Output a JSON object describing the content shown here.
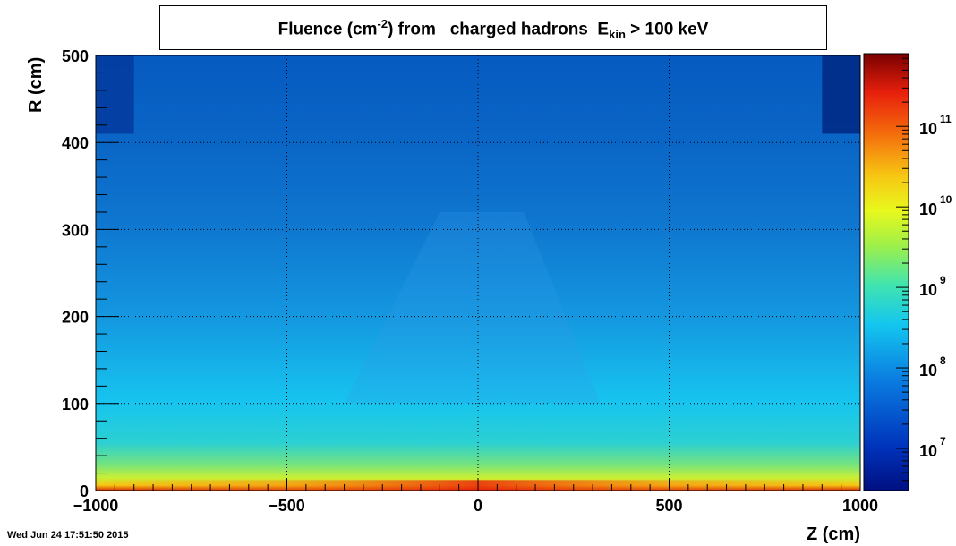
{
  "chart_data": {
    "type": "heatmap",
    "title_parts": {
      "pre": "Fluence (cm",
      "exp": "-2",
      "mid": ") from   charged hadrons  E",
      "sub": "kin",
      "post": " > 100 keV"
    },
    "xlabel": "Z (cm)",
    "ylabel": "R (cm)",
    "xlim": [
      -1000,
      1000
    ],
    "ylim": [
      0,
      500
    ],
    "x_ticks": [
      -1000,
      -500,
      0,
      500,
      1000
    ],
    "y_ticks": [
      0,
      100,
      200,
      300,
      400,
      500
    ],
    "x_tick_labels": [
      "−1000",
      "−500",
      "0",
      "500",
      "1000"
    ],
    "y_tick_labels": [
      "0",
      "100",
      "200",
      "300",
      "400",
      "500"
    ],
    "grid": true,
    "colorbar": {
      "scale": "log",
      "range": [
        3000000.0,
        800000000000.0
      ],
      "tick_base": "10",
      "tick_exponents": [
        "7",
        "8",
        "9",
        "10",
        "11"
      ]
    },
    "regions": [
      {
        "z_range": [
          -1000,
          1000
        ],
        "r_range": [
          0,
          10
        ],
        "fluence": 50000000000.0
      },
      {
        "z_range": [
          -1000,
          1000
        ],
        "r_range": [
          10,
          30
        ],
        "fluence": 8000000000.0
      },
      {
        "z_range": [
          -1000,
          1000
        ],
        "r_range": [
          30,
          60
        ],
        "fluence": 1500000000.0
      },
      {
        "z_range": [
          -1000,
          1000
        ],
        "r_range": [
          60,
          100
        ],
        "fluence": 600000000.0
      },
      {
        "z_range": [
          -1000,
          1000
        ],
        "r_range": [
          100,
          200
        ],
        "fluence": 300000000.0
      },
      {
        "z_range": [
          -1000,
          1000
        ],
        "r_range": [
          200,
          300
        ],
        "fluence": 150000000.0
      },
      {
        "z_range": [
          -1000,
          1000
        ],
        "r_range": [
          300,
          400
        ],
        "fluence": 70000000.0
      },
      {
        "z_range": [
          -1000,
          1000
        ],
        "r_range": [
          400,
          500
        ],
        "fluence": 50000000.0
      }
    ]
  },
  "timestamp": "Wed Jun 24 17:51:50 2015",
  "colors": {
    "frame": "#000000",
    "background": "#ffffff"
  }
}
